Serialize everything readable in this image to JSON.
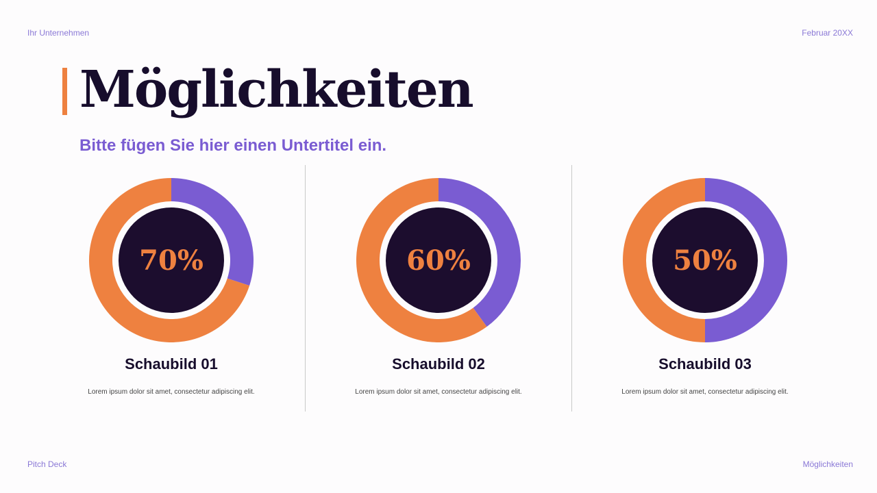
{
  "header": {
    "company": "Ihr Unternehmen",
    "date": "Februar 20XX"
  },
  "footer": {
    "left": "Pitch Deck",
    "right": "Möglichkeiten"
  },
  "title": "Möglichkeiten",
  "subtitle": "Bitte fügen Sie hier einen Untertitel ein.",
  "colors": {
    "orange": "#ee8140",
    "purple": "#7a5cd2",
    "dark": "#1c0d2e"
  },
  "chart_data": [
    {
      "type": "pie",
      "donut": true,
      "label": "70%",
      "title": "Schaubild 01",
      "description": "Lorem ipsum dolor sit amet, consectetur adipiscing elit.",
      "values": [
        70,
        30
      ]
    },
    {
      "type": "pie",
      "donut": true,
      "label": "60%",
      "title": "Schaubild 02",
      "description": "Lorem ipsum dolor sit amet, consectetur adipiscing elit.",
      "values": [
        60,
        40
      ]
    },
    {
      "type": "pie",
      "donut": true,
      "label": "50%",
      "title": "Schaubild 03",
      "description": "Lorem ipsum dolor sit amet, consectetur adipiscing elit.",
      "values": [
        50,
        50
      ]
    }
  ]
}
